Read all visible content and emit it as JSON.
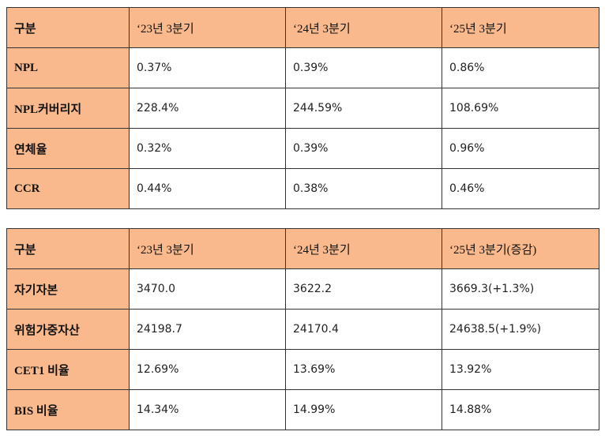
{
  "tables": [
    {
      "rows": [
        [
          "구분",
          "‘23년 3분기",
          "‘24년 3분기",
          "‘25년 3분기"
        ],
        [
          "NPL",
          "0.37%",
          "0.39%",
          "0.86%"
        ],
        [
          "NPL커버리지",
          "228.4%",
          "244.59%",
          "108.69%"
        ],
        [
          "연체율",
          "0.32%",
          "0.39%",
          "0.96%"
        ],
        [
          "CCR",
          "0.44%",
          "0.38%",
          "0.46%"
        ]
      ]
    },
    {
      "rows": [
        [
          "구분",
          "‘23년 3분기",
          "‘24년 3분기",
          "‘25년 3분기(증감)"
        ],
        [
          "자기자본",
          "3470.0",
          "3622.2",
          "3669.3(+1.3%)"
        ],
        [
          "위험가중자산",
          "24198.7",
          "24170.4",
          "24638.5(+1.9%)"
        ],
        [
          "CET1 비율",
          "12.69%",
          "13.69%",
          "13.92%"
        ],
        [
          "BIS 비율",
          "14.34%",
          "14.99%",
          "14.88%"
        ]
      ]
    }
  ]
}
